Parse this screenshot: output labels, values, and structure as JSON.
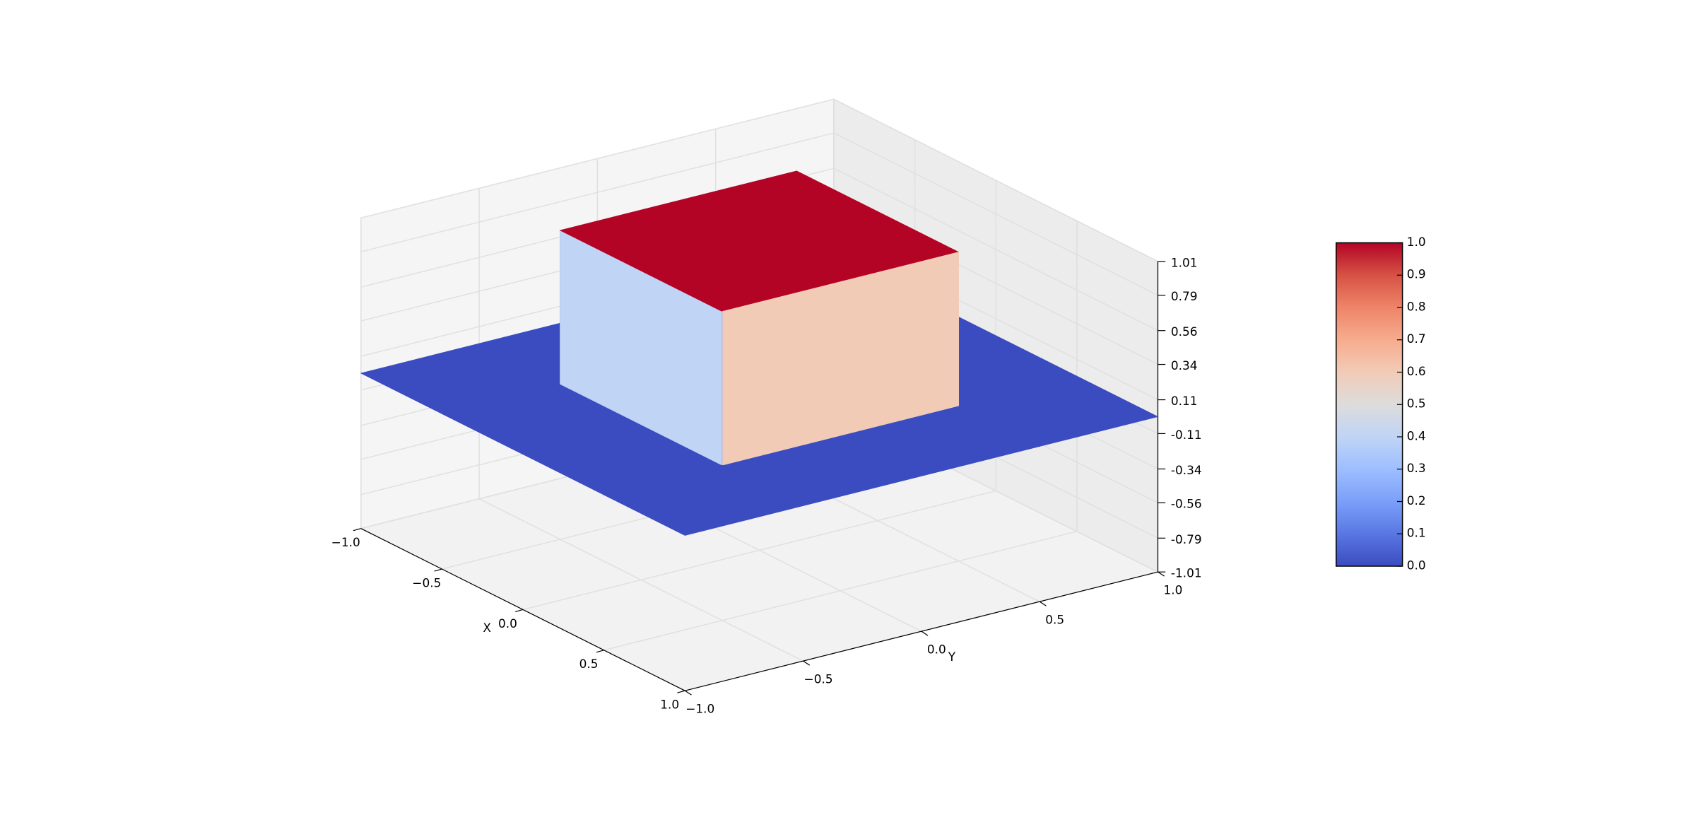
{
  "chart_data": {
    "type": "surface3d",
    "x": [
      -1.0,
      -0.5,
      -0.5,
      0.5,
      0.5,
      1.0
    ],
    "y": [
      -1.0,
      -0.5,
      -0.5,
      0.5,
      0.5,
      1.0
    ],
    "z": [
      [
        0,
        0,
        0,
        0,
        0,
        0
      ],
      [
        0,
        0,
        0,
        0,
        0,
        0
      ],
      [
        0,
        0,
        1,
        1,
        0,
        0
      ],
      [
        0,
        0,
        1,
        1,
        0,
        0
      ],
      [
        0,
        0,
        0,
        0,
        0,
        0
      ],
      [
        0,
        0,
        0,
        0,
        0,
        0
      ]
    ],
    "xlabel": "X",
    "ylabel": "Y",
    "xlim": [
      -1.0,
      1.0
    ],
    "ylim": [
      -1.0,
      1.0
    ],
    "zlim": [
      -1.01,
      1.01
    ],
    "xticks": [
      {
        "value": -1.0,
        "label": "−1.0"
      },
      {
        "value": -0.5,
        "label": "−0.5"
      },
      {
        "value": 0,
        "label": "0.0"
      },
      0.5,
      {
        "value": 1,
        "label": "1.0"
      }
    ],
    "yticks": [
      {
        "value": -1.0,
        "label": "−1.0"
      },
      {
        "value": -0.5,
        "label": "−0.5"
      },
      {
        "value": 0,
        "label": "0.0"
      },
      0.5,
      {
        "value": 1,
        "label": "1.0"
      }
    ],
    "zticks": [
      -1.01,
      -0.79,
      -0.56,
      -0.34,
      -0.11,
      0.11,
      0.34,
      0.56,
      0.79,
      1.01
    ],
    "grid": true,
    "colorbar": {
      "clim": [
        0,
        1
      ],
      "ticks": [
        {
          "value": 0,
          "label": "0.0"
        },
        0.1,
        0.2,
        0.3,
        0.4,
        0.5,
        0.6,
        0.7,
        0.8,
        0.9,
        {
          "value": 1,
          "label": "1.0"
        }
      ],
      "colormap": [
        "#3b4cc0",
        "#5977e3",
        "#7b9ff9",
        "#9ebeff",
        "#c0d4f5",
        "#dddcdc",
        "#f2cbb7",
        "#f7ac8e",
        "#ee8468",
        "#d65244",
        "#b40426"
      ]
    }
  }
}
